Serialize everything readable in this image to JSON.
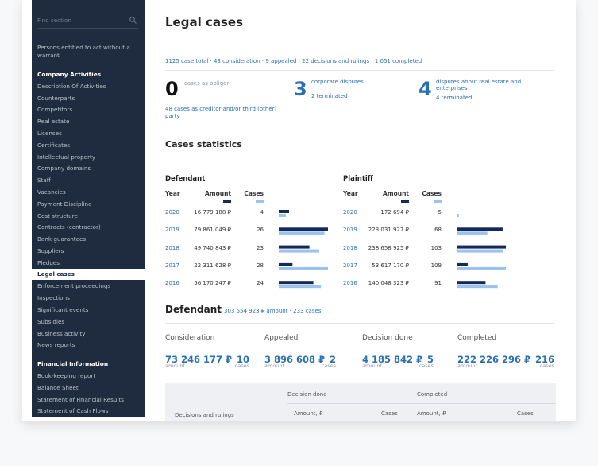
{
  "sidebar": {
    "search_placeholder": "Find section",
    "top_link": "Persons entitled to act without a warrant",
    "sections": [
      {
        "title": "Company Activities",
        "items": [
          {
            "label": "Description Of Activities"
          },
          {
            "label": "Counterparts"
          },
          {
            "label": "Competitors"
          },
          {
            "label": "Real estate"
          },
          {
            "label": "Licenses"
          },
          {
            "label": "Certificates"
          },
          {
            "label": "Intellectual property"
          },
          {
            "label": "Company domains"
          },
          {
            "label": "Staff"
          },
          {
            "label": "Vacancies"
          },
          {
            "label": "Payment Discipline"
          },
          {
            "label": "Cost structure"
          },
          {
            "label": "Contracts (contractor)"
          },
          {
            "label": "Bank guarantees"
          },
          {
            "label": "Suppliers"
          },
          {
            "label": "Pledges"
          },
          {
            "label": "Legal cases",
            "active": true
          },
          {
            "label": "Enforcement proceedings"
          },
          {
            "label": "Inspections"
          },
          {
            "label": "Significant events"
          },
          {
            "label": "Subsidies"
          },
          {
            "label": "Business activity"
          },
          {
            "label": "News reports"
          }
        ]
      },
      {
        "title": "Financial Information",
        "items": [
          {
            "label": "Book-keeping report"
          },
          {
            "label": "Balance Sheet"
          },
          {
            "label": "Statement of Financial Results"
          },
          {
            "label": "Statement of Cash Flows"
          }
        ]
      }
    ]
  },
  "header": {
    "title": "Legal cases"
  },
  "summary": "1125 case total · 43 consideration · 9 appealed · 22 decisions and rulings · 1 051 completed",
  "overview": [
    {
      "count": 0,
      "label": "cases as obligor",
      "note": "48 cases as creditor and/or third (other) party"
    },
    {
      "count": 3,
      "label": "corporate disputes",
      "note": "2 terminated"
    },
    {
      "count": 4,
      "label": "disputes about real estate and enterprises",
      "note": "4 terminated"
    }
  ],
  "statistics": {
    "title": "Cases statistics",
    "columns": [
      "Year",
      "Amount",
      "Cases"
    ],
    "tables": [
      {
        "title": "Defendant",
        "rows": [
          {
            "year": 2020,
            "amount": "16 779 188 ₽",
            "cases": 4
          },
          {
            "year": 2019,
            "amount": "79 861 049 ₽",
            "cases": 26
          },
          {
            "year": 2018,
            "amount": "49 740 843 ₽",
            "cases": 23
          },
          {
            "year": 2017,
            "amount": "22 311 628 ₽",
            "cases": 28
          },
          {
            "year": 2016,
            "amount": "56 170 247 ₽",
            "cases": 24
          }
        ]
      },
      {
        "title": "Plaintiff",
        "rows": [
          {
            "year": 2020,
            "amount": "172 694 ₽",
            "cases": 5
          },
          {
            "year": 2019,
            "amount": "223 031 927 ₽",
            "cases": 68
          },
          {
            "year": 2018,
            "amount": "238 658 925 ₽",
            "cases": 103
          },
          {
            "year": 2017,
            "amount": "53 617 170 ₽",
            "cases": 109
          },
          {
            "year": 2016,
            "amount": "140 048 323 ₽",
            "cases": 91
          }
        ]
      }
    ]
  },
  "defendant": {
    "title": "Defendant",
    "summary": "303 554 923 ₽ amount · 233 cases",
    "amount_caption": "amount",
    "cases_caption": "cases",
    "stages": [
      {
        "name": "Consideration",
        "amount": "73 246 177 ₽",
        "cases": 10
      },
      {
        "name": "Appealed",
        "amount": "3 896 608 ₽",
        "cases": 2
      },
      {
        "name": "Decision done",
        "amount": "4 185 842 ₽",
        "cases": 5
      },
      {
        "name": "Completed",
        "amount": "222 226 296 ₽",
        "cases": 216
      }
    ]
  },
  "decisions_table": {
    "group_headers": [
      "Decision done",
      "Completed"
    ],
    "row_label": "Decisions and rulings",
    "columns": [
      "Amount, ₽",
      "Cases",
      "Amount, ₽",
      "Cases"
    ]
  }
}
